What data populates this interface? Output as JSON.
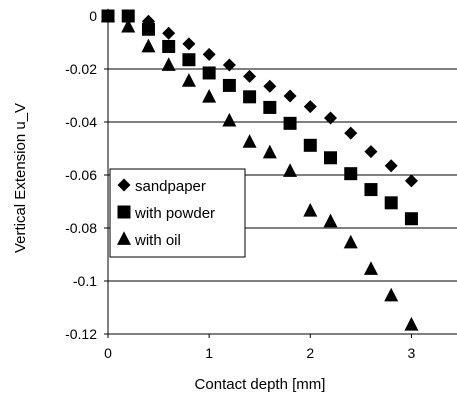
{
  "chart_data": {
    "type": "scatter",
    "xlabel": "Contact depth [mm]",
    "ylabel": "Vertical Extension  u_V",
    "xlim": [
      0,
      3.5
    ],
    "ylim": [
      -0.12,
      0
    ],
    "xticks": [
      0,
      1,
      2,
      3
    ],
    "yticks": [
      0,
      -0.02,
      -0.04,
      -0.06,
      -0.08,
      -0.1,
      -0.12
    ],
    "xtick_labels": [
      "0",
      "1",
      "2",
      "3"
    ],
    "ytick_labels": [
      "0",
      "-0.02",
      "-0.04",
      "-0.06",
      "-0.08",
      "-0.1",
      "-0.12"
    ],
    "grid": "horizontal",
    "legend_position": "left",
    "series": [
      {
        "name": "sandpaper",
        "marker": "diamond",
        "x": [
          0,
          0.2,
          0.4,
          0.6,
          0.8,
          1.0,
          1.2,
          1.4,
          1.6,
          1.8,
          2.0,
          2.2,
          2.4,
          2.6,
          2.8,
          3.0
        ],
        "y": [
          0,
          0,
          -0.002,
          -0.0065,
          -0.0105,
          -0.0145,
          -0.0185,
          -0.0228,
          -0.0265,
          -0.0302,
          -0.0342,
          -0.0385,
          -0.0442,
          -0.0512,
          -0.0565,
          -0.0622
        ]
      },
      {
        "name": "with powder",
        "marker": "square",
        "x": [
          0,
          0.2,
          0.4,
          0.6,
          0.8,
          1.0,
          1.2,
          1.4,
          1.6,
          1.8,
          2.0,
          2.2,
          2.4,
          2.6,
          2.8,
          3.0
        ],
        "y": [
          0,
          0,
          -0.005,
          -0.0115,
          -0.0165,
          -0.0215,
          -0.0262,
          -0.0305,
          -0.0345,
          -0.0405,
          -0.0488,
          -0.0535,
          -0.0595,
          -0.0655,
          -0.0705,
          -0.0765
        ]
      },
      {
        "name": "with oil",
        "marker": "triangle",
        "x": [
          0,
          0.2,
          0.4,
          0.6,
          0.8,
          1.0,
          1.2,
          1.4,
          1.6,
          1.8,
          2.0,
          2.2,
          2.4,
          2.6,
          2.8,
          3.0
        ],
        "y": [
          0,
          -0.004,
          -0.0115,
          -0.0185,
          -0.0245,
          -0.0305,
          -0.0395,
          -0.0475,
          -0.0515,
          -0.0585,
          -0.0735,
          -0.0775,
          -0.0855,
          -0.0955,
          -0.1055,
          -0.1165
        ]
      }
    ]
  }
}
